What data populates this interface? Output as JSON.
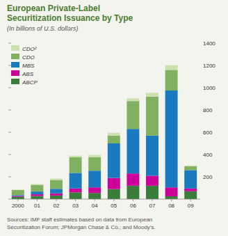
{
  "chart_data": {
    "type": "bar",
    "stacked": true,
    "title": "European Private-Label\nSecuritization Issuance by Type",
    "subtitle": "(In billions of U.S. dollars)",
    "source": "Sources: IMF staff estimates based on data from European\nSecuritization Forum; JPMorgan Chase & Co.; and Moody’s.",
    "categories": [
      "2000",
      "01",
      "02",
      "03",
      "04",
      "05",
      "06",
      "07",
      "08",
      "09"
    ],
    "series": [
      {
        "name": "ABCP",
        "color": "#3a7d3a",
        "values": [
          20,
          28,
          32,
          60,
          55,
          90,
          120,
          120,
          25,
          70
        ]
      },
      {
        "name": "ABS",
        "color": "#cc0099",
        "values": [
          8,
          15,
          20,
          35,
          50,
          100,
          110,
          90,
          80,
          25
        ]
      },
      {
        "name": "MBS",
        "color": "#1a7abf",
        "values": [
          8,
          25,
          40,
          140,
          150,
          310,
          400,
          360,
          870,
          165
        ]
      },
      {
        "name": "CDO",
        "color": "#80b060",
        "values": [
          45,
          60,
          80,
          140,
          120,
          70,
          250,
          350,
          185,
          35
        ]
      },
      {
        "name": "CDO²",
        "color": "#cce0b0",
        "values": [
          4,
          7,
          12,
          15,
          22,
          25,
          25,
          35,
          42,
          7
        ]
      }
    ],
    "ylim": [
      0,
      1400
    ],
    "yticks": [
      200,
      400,
      600,
      800,
      1000,
      1200,
      1400
    ],
    "grid": false,
    "legend": "upper left"
  }
}
